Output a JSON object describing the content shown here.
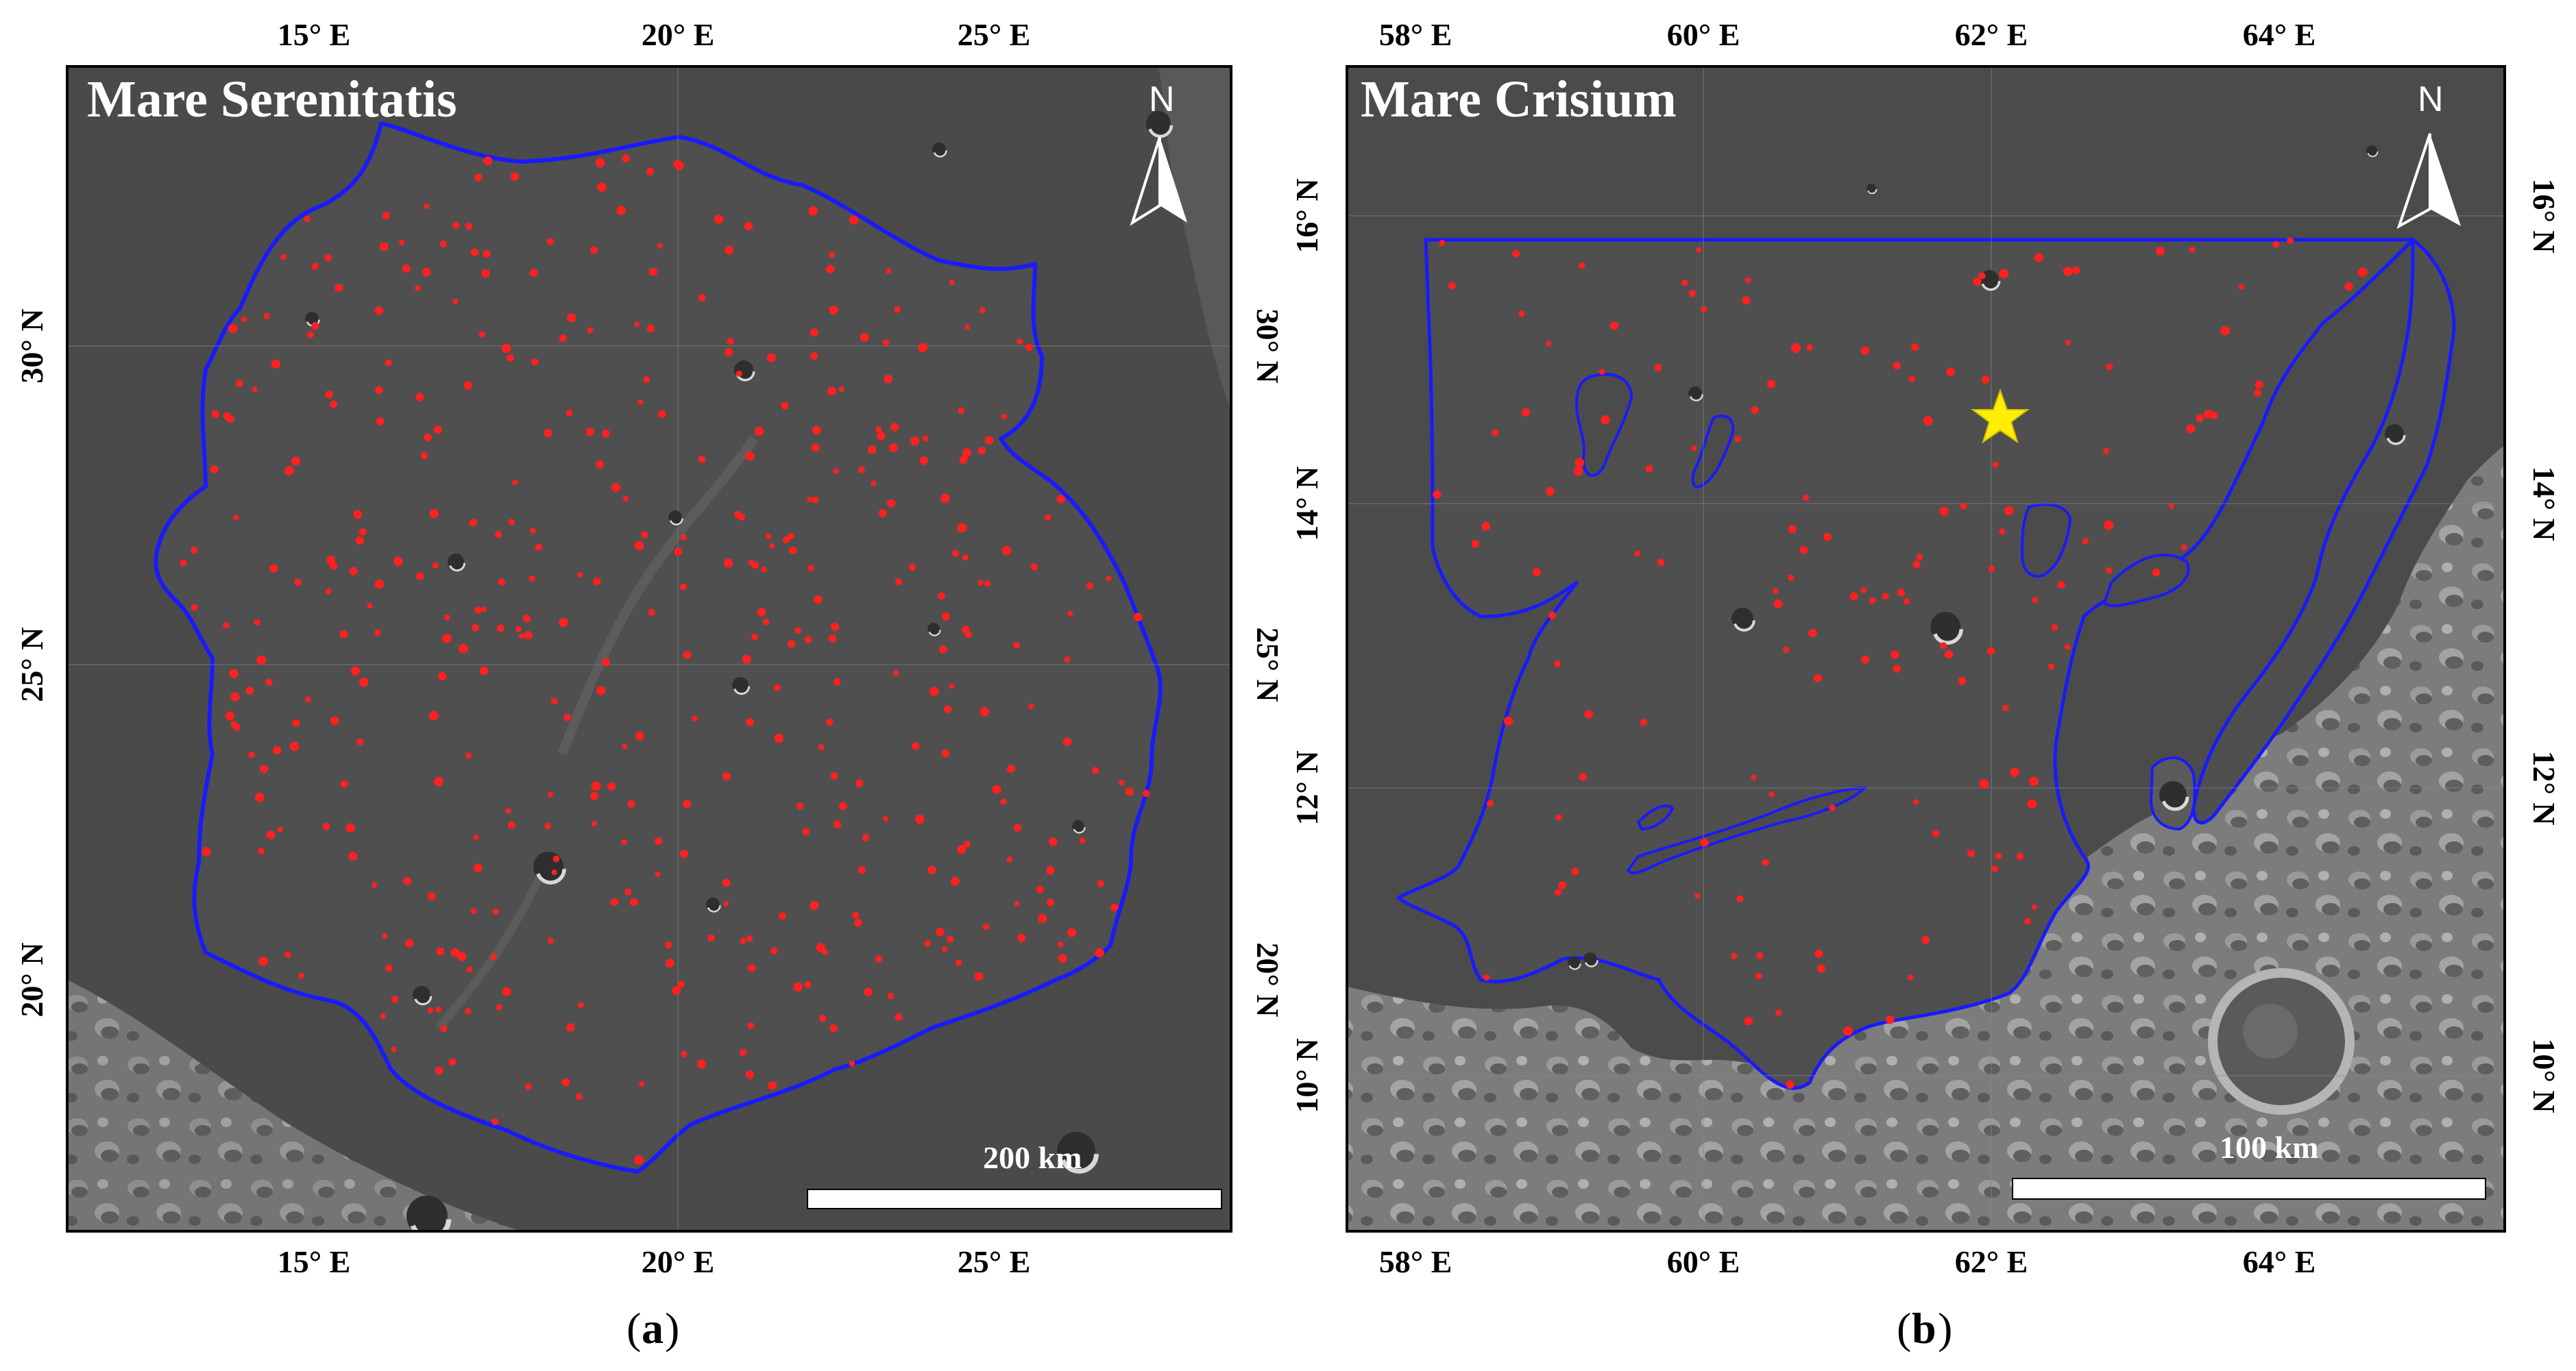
{
  "panel_a": {
    "title": "Mare Serenitatis",
    "caption_letter": "a",
    "north_label": "N",
    "scale_label": "200 km",
    "top_lon_labels": [
      "15° E",
      "20° E",
      "25° E"
    ],
    "bottom_lon_labels": [
      "15° E",
      "20° E",
      "25° E"
    ],
    "left_lat_labels": [
      "30° N",
      "25° N",
      "20° N"
    ],
    "right_lat_labels": [
      "30° N",
      "25° N",
      "20° N"
    ],
    "boundary_color": "#1a1aff",
    "sample_point_color": "#ff2020"
  },
  "panel_b": {
    "title": "Mare Crisium",
    "caption_letter": "b",
    "north_label": "N",
    "scale_label": "100 km",
    "top_lon_labels": [
      "58° E",
      "60° E",
      "62° E",
      "64° E"
    ],
    "bottom_lon_labels": [
      "58° E",
      "60° E",
      "62° E",
      "64° E"
    ],
    "left_lat_labels": [
      "16° N",
      "14° N",
      "12° N",
      "10° N"
    ],
    "right_lat_labels": [
      "16° N",
      "14° N",
      "12° N",
      "10° N"
    ],
    "boundary_color": "#1a1aff",
    "sample_point_color": "#ff2020",
    "star_icon": "star-icon",
    "star_color": "#ffee00"
  }
}
